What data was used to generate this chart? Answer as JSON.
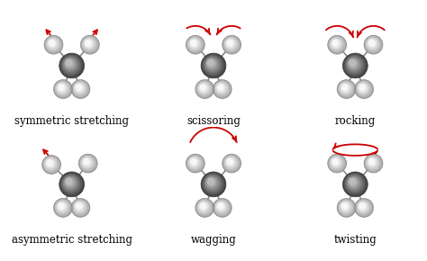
{
  "background_color": "#ffffff",
  "labels": [
    "symmetric stretching",
    "scissoring",
    "rocking",
    "asymmetric stretching",
    "wagging",
    "twisting"
  ],
  "label_fontsize": 8.5,
  "arrow_color": "#cc0000",
  "dark_atom_color_center": "#5a5a5a",
  "dark_atom_color_edge": "#2a2a2a",
  "light_atom_color_center": "#eeeeee",
  "light_atom_color_edge": "#999999",
  "bond_color": "#888888",
  "bond_lw": 1.2
}
